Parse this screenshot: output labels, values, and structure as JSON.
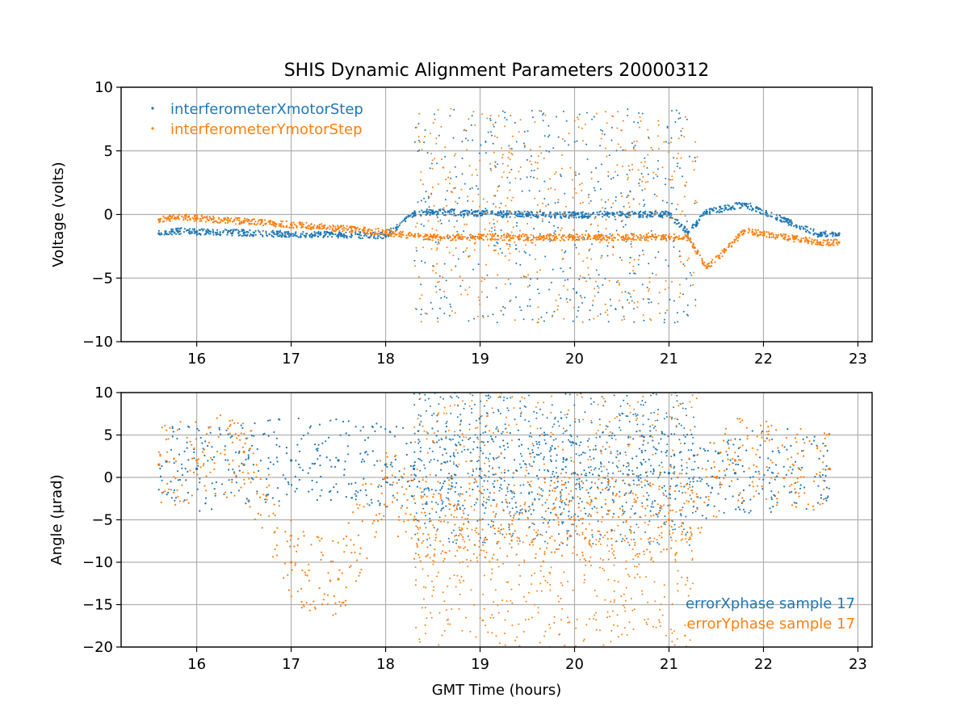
{
  "figure": {
    "title": "SHIS Dynamic Alignment Parameters 20000312"
  },
  "colors": {
    "blue": "#1f77b4",
    "orange": "#ff7f0e"
  },
  "chart_data": [
    {
      "type": "scatter",
      "title": "SHIS Dynamic Alignment Parameters 20000312",
      "xlabel": "",
      "ylabel": "Voltage (volts)",
      "xlim": [
        15.2,
        23.15
      ],
      "ylim": [
        -10,
        10
      ],
      "xticks": [
        16,
        17,
        18,
        19,
        20,
        21,
        22,
        23
      ],
      "yticks": [
        10,
        5,
        0,
        -5,
        -10
      ],
      "ytick_labels": [
        "10",
        "5",
        "0",
        "−5",
        "−10"
      ],
      "grid": true,
      "legend_position": "upper-left",
      "series": [
        {
          "name": "interferometerXmotorStep",
          "color": "#1f77b4",
          "x": [
            15.6,
            15.8,
            16.0,
            16.5,
            17.0,
            17.5,
            18.0,
            18.3,
            18.5,
            19.0,
            19.5,
            20.0,
            20.5,
            21.0,
            21.2,
            21.4,
            21.6,
            21.8,
            22.6,
            22.8
          ],
          "y": [
            -1.5,
            -1.3,
            -1.35,
            -1.45,
            -1.55,
            -1.6,
            -1.65,
            0.1,
            0.2,
            0.1,
            0.0,
            -0.05,
            0.0,
            0.0,
            -1.4,
            0.2,
            0.5,
            0.8,
            -1.6,
            -1.5
          ]
        },
        {
          "name": "interferometerYmotorStep",
          "color": "#ff7f0e",
          "x": [
            15.6,
            15.8,
            16.0,
            16.5,
            17.0,
            17.5,
            18.0,
            18.3,
            18.5,
            19.0,
            19.5,
            20.0,
            20.5,
            21.0,
            21.2,
            21.4,
            21.6,
            21.8,
            22.6,
            22.8
          ],
          "y": [
            -0.4,
            -0.2,
            -0.3,
            -0.55,
            -0.8,
            -1.1,
            -1.4,
            -1.7,
            -1.8,
            -1.8,
            -1.8,
            -1.8,
            -1.8,
            -1.8,
            -1.8,
            -4.2,
            -2.8,
            -1.3,
            -2.2,
            -2.2
          ]
        }
      ]
    },
    {
      "type": "scatter",
      "xlabel": "GMT Time (hours)",
      "ylabel": "Angle (μrad)",
      "xlim": [
        15.2,
        23.15
      ],
      "ylim": [
        -20,
        10
      ],
      "xticks": [
        16,
        17,
        18,
        19,
        20,
        21,
        22,
        23
      ],
      "yticks": [
        10,
        5,
        0,
        -5,
        -10,
        -15,
        -20
      ],
      "ytick_labels": [
        "10",
        "5",
        "0",
        "−5",
        "−10",
        "−15",
        "−20"
      ],
      "grid": true,
      "legend_position": "lower-right",
      "series": [
        {
          "name": "errorXphase sample 17",
          "color": "#1f77b4",
          "x": [
            15.6,
            16.0,
            16.5,
            17.0,
            17.5,
            18.0,
            18.3,
            19.0,
            20.0,
            21.0,
            21.5,
            21.7,
            22.7
          ],
          "y": [
            1.5,
            1.0,
            1.5,
            2.0,
            2.0,
            1.5,
            1.0,
            1.0,
            0.5,
            0.5,
            0.0,
            0.5,
            1.0
          ]
        },
        {
          "name": "errorYphase sample 17",
          "color": "#ff7f0e",
          "x": [
            15.6,
            16.0,
            16.5,
            17.0,
            17.5,
            18.0,
            18.3,
            19.0,
            20.0,
            21.0,
            21.5,
            21.7,
            22.7
          ],
          "y": [
            1.5,
            2.0,
            3.0,
            -10.0,
            -12.0,
            0.0,
            -5.0,
            -5.0,
            -5.0,
            -5.0,
            0.0,
            2.0,
            1.0
          ]
        }
      ]
    }
  ]
}
